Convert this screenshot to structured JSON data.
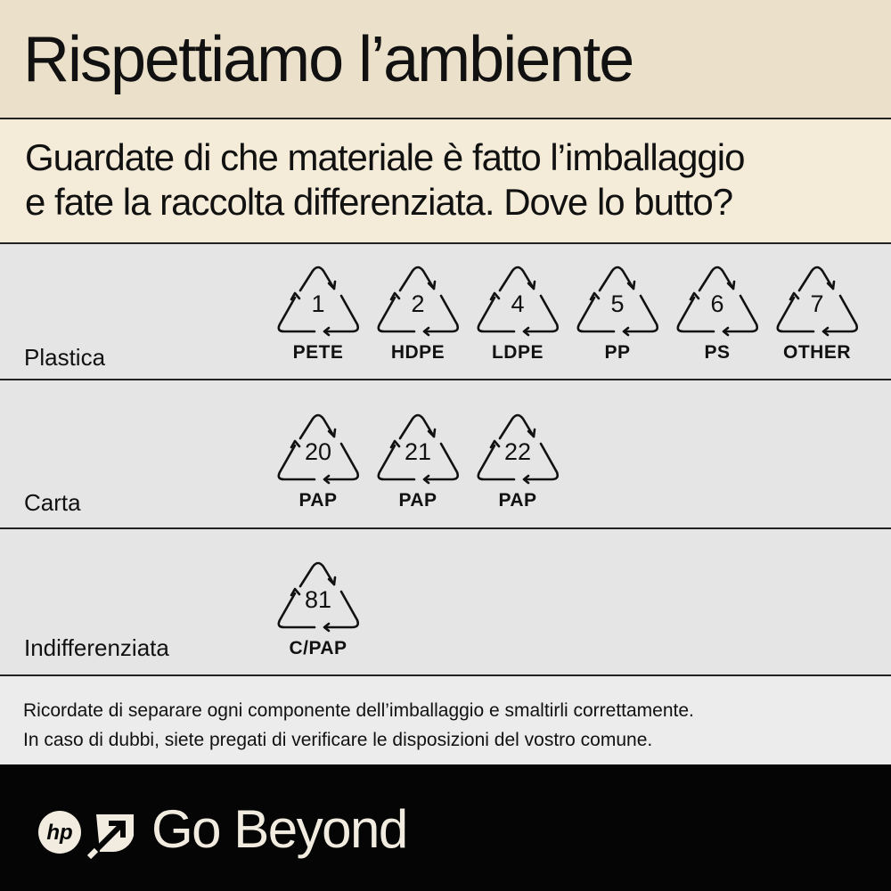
{
  "title": "Rispettiamo l’ambiente",
  "subtitle_line1": "Guardate di che materiale è fatto l’imballaggio",
  "subtitle_line2": "e fate la raccolta differenziata.  Dove lo butto?",
  "rows": [
    {
      "label": "Plastica",
      "symbols": [
        {
          "number": "1",
          "code": "PETE"
        },
        {
          "number": "2",
          "code": "HDPE"
        },
        {
          "number": "4",
          "code": "LDPE"
        },
        {
          "number": "5",
          "code": "PP"
        },
        {
          "number": "6",
          "code": "PS"
        },
        {
          "number": "7",
          "code": "OTHER"
        }
      ]
    },
    {
      "label": "Carta",
      "symbols": [
        {
          "number": "20",
          "code": "PAP"
        },
        {
          "number": "21",
          "code": "PAP"
        },
        {
          "number": "22",
          "code": "PAP"
        }
      ]
    },
    {
      "label": "Indifferenziata",
      "symbols": [
        {
          "number": "81",
          "code": "C/PAP"
        }
      ]
    }
  ],
  "notes_line1": "Ricordate di separare ogni componente dell’imballaggio e smaltirli correttamente.",
  "notes_line2": "In caso di dubbi, siete pregati di verificare le disposizioni del vostro comune.",
  "footer": {
    "logo_text": "hp",
    "tagline": "Go Beyond"
  },
  "colors": {
    "title_bg": "#ebe0ca",
    "subtitle_bg": "#f4ecd9",
    "row_bg": "#e5e5e5",
    "footer_bg": "#050505",
    "footer_text": "#f1ecdf"
  }
}
